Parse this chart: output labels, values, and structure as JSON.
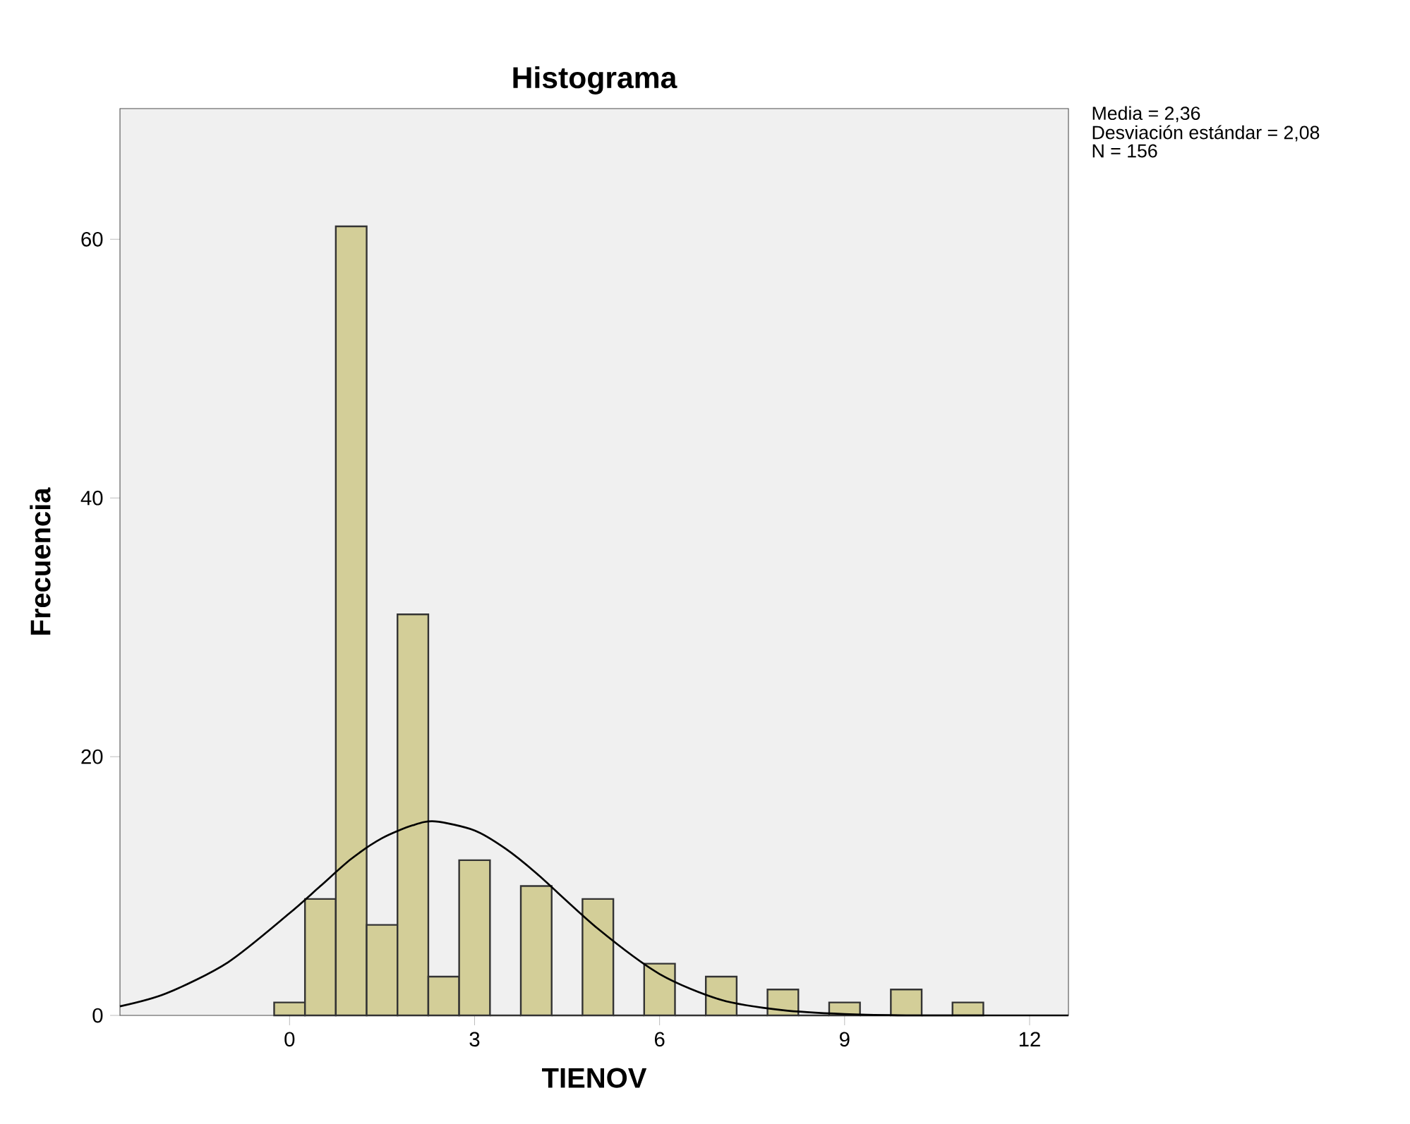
{
  "chart_data": {
    "type": "histogram",
    "title": "Histograma",
    "xlabel": "TIENOV",
    "ylabel": "Frecuencia",
    "annotations": [
      "Media = 2,36",
      "Desviación estándar = 2,08",
      "N = 156"
    ],
    "bins": [
      -0.25,
      0.25,
      0.75,
      1.25,
      1.75,
      2.25,
      2.75,
      3.25,
      3.75,
      4.25,
      4.75,
      5.25,
      5.75,
      6.25,
      6.75,
      7.25,
      7.75,
      8.25,
      8.75,
      9.25,
      9.75,
      10.25,
      10.75,
      11.25
    ],
    "values": [
      1,
      9,
      61,
      7,
      31,
      3,
      12,
      0,
      10,
      0,
      9,
      0,
      4,
      0,
      3,
      0,
      2,
      0,
      1,
      0,
      2,
      0,
      1
    ],
    "color": "#d3ce98",
    "series": [
      {
        "type": "line",
        "color": "#000000",
        "x": [
          -2.75,
          -2,
          -1,
          0,
          0.5,
          1,
          1.5,
          2,
          2.36,
          3,
          3.5,
          4,
          5,
          6,
          7,
          8,
          9,
          10,
          11,
          12.63
        ],
        "values": [
          0.7,
          1.7,
          4.1,
          7.9,
          10,
          12.1,
          13.7,
          14.7,
          15,
          14.3,
          12.9,
          11,
          6.7,
          3.2,
          1.2,
          0.4,
          0.1,
          0,
          0,
          0
        ]
      }
    ],
    "xlim": [
      -2.75,
      12.63
    ],
    "ylim": [
      0,
      70.1
    ],
    "xticks": [
      0,
      3,
      6,
      9,
      12
    ],
    "yticks": [
      0,
      20,
      40,
      60
    ],
    "grid": false
  }
}
